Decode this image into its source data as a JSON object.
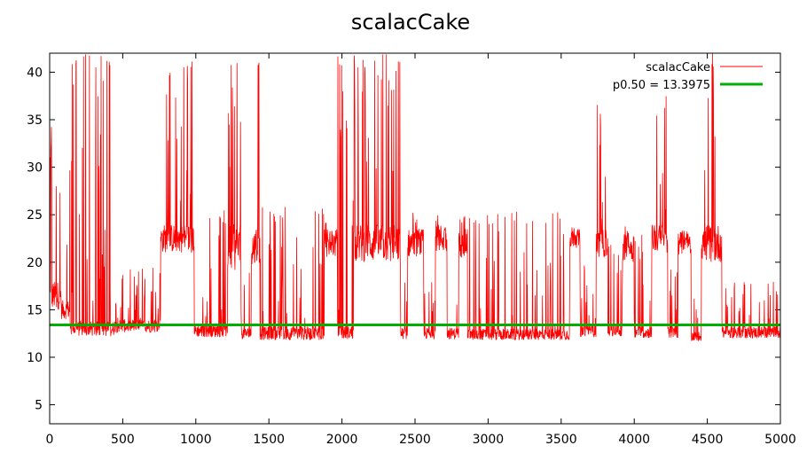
{
  "chart_data": {
    "type": "line",
    "title": "scalacCake",
    "xlabel": "",
    "ylabel": "",
    "xlim": [
      0,
      5000
    ],
    "ylim": [
      3,
      42
    ],
    "xticks": [
      0,
      500,
      1000,
      1500,
      2000,
      2500,
      3000,
      3500,
      4000,
      4500,
      5000
    ],
    "yticks": [
      5,
      10,
      15,
      20,
      25,
      30,
      35,
      40
    ],
    "grid": false,
    "legend_position": "top-right",
    "series": [
      {
        "name": "scalacCake",
        "color": "#ff0000",
        "style": "noisy-line",
        "segments": [
          {
            "x0": 0,
            "x1": 15,
            "base": 26,
            "spread": 14,
            "spike_max": 42
          },
          {
            "x0": 15,
            "x1": 80,
            "base": 16.5,
            "spread": 1.5,
            "spike_max": 36
          },
          {
            "x0": 80,
            "x1": 140,
            "base": 15,
            "spread": 1,
            "spike_max": 42
          },
          {
            "x0": 140,
            "x1": 440,
            "base": 13,
            "spread": 0.8,
            "spike_max": 42
          },
          {
            "x0": 440,
            "x1": 760,
            "base": 13.3,
            "spread": 0.7,
            "spike_max": 19.5
          },
          {
            "x0": 760,
            "x1": 990,
            "base": 22.5,
            "spread": 1.5,
            "spike_max": 42
          },
          {
            "x0": 990,
            "x1": 1220,
            "base": 12.8,
            "spread": 0.7,
            "spike_max": 25.5
          },
          {
            "x0": 1220,
            "x1": 1310,
            "base": 21.5,
            "spread": 2.5,
            "spike_max": 42
          },
          {
            "x0": 1310,
            "x1": 1380,
            "base": 12.5,
            "spread": 0.6,
            "spike_max": 20
          },
          {
            "x0": 1380,
            "x1": 1440,
            "base": 21.5,
            "spread": 2,
            "spike_max": 42
          },
          {
            "x0": 1440,
            "x1": 1880,
            "base": 12.5,
            "spread": 0.7,
            "spike_max": 26
          },
          {
            "x0": 1880,
            "x1": 1970,
            "base": 22,
            "spread": 1.5,
            "spike_max": 24.5
          },
          {
            "x0": 1970,
            "x1": 2080,
            "base": 12.6,
            "spread": 0.7,
            "spike_max": 42
          },
          {
            "x0": 2080,
            "x1": 2400,
            "base": 22,
            "spread": 2,
            "spike_max": 42
          },
          {
            "x0": 2400,
            "x1": 2450,
            "base": 12.5,
            "spread": 0.6,
            "spike_max": 20
          },
          {
            "x0": 2450,
            "x1": 2560,
            "base": 22,
            "spread": 1.5,
            "spike_max": 25.5
          },
          {
            "x0": 2560,
            "x1": 2640,
            "base": 12.5,
            "spread": 0.6,
            "spike_max": 18
          },
          {
            "x0": 2640,
            "x1": 2720,
            "base": 22.5,
            "spread": 1.5,
            "spike_max": 25
          },
          {
            "x0": 2720,
            "x1": 2800,
            "base": 12.5,
            "spread": 0.6,
            "spike_max": 17
          },
          {
            "x0": 2800,
            "x1": 2860,
            "base": 22,
            "spread": 1.5,
            "spike_max": 25
          },
          {
            "x0": 2860,
            "x1": 3560,
            "base": 12.4,
            "spread": 0.6,
            "spike_max": 25.5
          },
          {
            "x0": 3560,
            "x1": 3630,
            "base": 22.5,
            "spread": 1,
            "spike_max": 24
          },
          {
            "x0": 3630,
            "x1": 3740,
            "base": 12.8,
            "spread": 0.7,
            "spike_max": 20
          },
          {
            "x0": 3740,
            "x1": 3820,
            "base": 22,
            "spread": 1.5,
            "spike_max": 37
          },
          {
            "x0": 3820,
            "x1": 3920,
            "base": 12.8,
            "spread": 0.6,
            "spike_max": 22
          },
          {
            "x0": 3920,
            "x1": 4000,
            "base": 21.5,
            "spread": 1.5,
            "spike_max": 24
          },
          {
            "x0": 4000,
            "x1": 4120,
            "base": 12.6,
            "spread": 0.6,
            "spike_max": 23
          },
          {
            "x0": 4120,
            "x1": 4230,
            "base": 22.5,
            "spread": 1.5,
            "spike_max": 37.5
          },
          {
            "x0": 4230,
            "x1": 4300,
            "base": 12.6,
            "spread": 0.6,
            "spike_max": 21
          },
          {
            "x0": 4300,
            "x1": 4390,
            "base": 22,
            "spread": 1.2,
            "spike_max": 23.5
          },
          {
            "x0": 4390,
            "x1": 4460,
            "base": 12.2,
            "spread": 0.5,
            "spike_max": 22
          },
          {
            "x0": 4460,
            "x1": 4600,
            "base": 22,
            "spread": 2,
            "spike_max": 42
          },
          {
            "x0": 4600,
            "x1": 5000,
            "base": 12.6,
            "spread": 0.6,
            "spike_max": 18
          }
        ]
      },
      {
        "name": "p0.50 = 13.3975",
        "color": "#00b000",
        "style": "constant",
        "value": 13.3975
      }
    ]
  }
}
